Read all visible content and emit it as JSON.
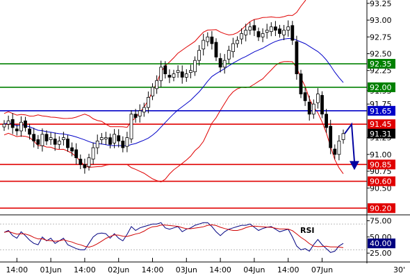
{
  "chart_data": [
    {
      "type": "candlestick",
      "ylim": [
        90.1,
        93.3
      ],
      "y_ticks": [
        {
          "v": 93.25,
          "label": "93.25"
        },
        {
          "v": 93.0,
          "label": "93.00"
        },
        {
          "v": 92.75,
          "label": "92.75"
        },
        {
          "v": 92.5,
          "label": "92.50"
        },
        {
          "v": 92.25,
          "label": "92.25"
        },
        {
          "v": 91.95,
          "label": "91.95"
        },
        {
          "v": 91.75,
          "label": "91.75"
        },
        {
          "v": 91.25,
          "label": "91.25"
        },
        {
          "v": 91.0,
          "label": "91.00"
        },
        {
          "v": 90.75,
          "label": "90.75"
        },
        {
          "v": 90.5,
          "label": "90.50"
        }
      ],
      "x_ticks": [
        {
          "i": 3,
          "label": "14:00"
        },
        {
          "i": 11,
          "label": "01Jun"
        },
        {
          "i": 19,
          "label": "14:00"
        },
        {
          "i": 27,
          "label": "02Jun"
        },
        {
          "i": 35,
          "label": "14:00"
        },
        {
          "i": 43,
          "label": "03Jun"
        },
        {
          "i": 51,
          "label": "14:00"
        },
        {
          "i": 59,
          "label": "04Jun"
        },
        {
          "i": 67,
          "label": "14:00"
        },
        {
          "i": 75,
          "label": "07Jun"
        }
      ],
      "timeframe_label": "30'",
      "close": [
        91.45,
        91.5,
        91.4,
        91.35,
        91.48,
        91.4,
        91.3,
        91.2,
        91.15,
        91.3,
        91.2,
        91.25,
        91.15,
        91.2,
        91.25,
        91.1,
        91.05,
        90.95,
        90.85,
        90.8,
        90.95,
        91.1,
        91.2,
        91.25,
        91.25,
        91.15,
        91.3,
        91.2,
        91.1,
        91.25,
        91.6,
        91.55,
        91.65,
        91.7,
        91.85,
        92.0,
        92.1,
        92.3,
        92.2,
        92.15,
        92.2,
        92.25,
        92.15,
        92.2,
        92.25,
        92.4,
        92.55,
        92.7,
        92.75,
        92.65,
        92.45,
        92.3,
        92.4,
        92.55,
        92.65,
        92.7,
        92.8,
        92.85,
        92.9,
        92.85,
        92.75,
        92.8,
        92.85,
        92.9,
        92.85,
        92.8,
        92.85,
        92.9,
        92.7,
        92.2,
        91.9,
        91.8,
        91.6,
        91.75,
        91.9,
        91.6,
        91.4,
        91.1,
        91.0,
        91.2,
        91.31
      ],
      "horizontal_levels": [
        {
          "value": 92.35,
          "label": "92.35",
          "color": "#008000"
        },
        {
          "value": 92.0,
          "label": "92.00",
          "color": "#008000"
        },
        {
          "value": 91.65,
          "label": "91.65",
          "color": "#0000c8"
        },
        {
          "value": 91.45,
          "label": "91.45",
          "color": "#e00000"
        },
        {
          "value": 90.85,
          "label": "90.85",
          "color": "#e00000"
        },
        {
          "value": 90.6,
          "label": "90.60",
          "color": "#e00000"
        },
        {
          "value": 90.2,
          "label": "90.20",
          "color": "#e00000"
        }
      ],
      "current_price": {
        "value": 91.31,
        "label": "91.31",
        "color": "#000000"
      },
      "forecast_arrow": {
        "path_values": [
          91.31,
          91.45,
          90.85
        ],
        "color": "#0000a0"
      },
      "indicators": [
        "bollinger-bands",
        "moving-average"
      ],
      "colors": {
        "bollinger": "#e00000",
        "moving_average": "#0000c8",
        "candles": "#000000"
      }
    },
    {
      "type": "line",
      "title": "RSI",
      "ylim": [
        22,
        82
      ],
      "y_ticks": [
        {
          "v": 75,
          "label": "75.00"
        },
        {
          "v": 50,
          "label": "50.00"
        },
        {
          "v": 25,
          "label": "25.00"
        }
      ],
      "guide_levels": [
        70,
        30
      ],
      "values": [
        57,
        60,
        52,
        48,
        58,
        52,
        45,
        40,
        38,
        50,
        44,
        48,
        40,
        44,
        48,
        38,
        35,
        32,
        30,
        30,
        40,
        50,
        55,
        56,
        55,
        48,
        55,
        48,
        44,
        54,
        66,
        60,
        64,
        66,
        68,
        70,
        70,
        72,
        64,
        62,
        64,
        66,
        58,
        62,
        64,
        68,
        70,
        72,
        72,
        66,
        58,
        52,
        58,
        62,
        64,
        66,
        68,
        68,
        70,
        65,
        60,
        63,
        65,
        66,
        62,
        58,
        60,
        62,
        50,
        36,
        30,
        32,
        28,
        38,
        46,
        38,
        32,
        26,
        28,
        36,
        40
      ],
      "current": {
        "value": 40,
        "label": "40.00"
      }
    }
  ]
}
